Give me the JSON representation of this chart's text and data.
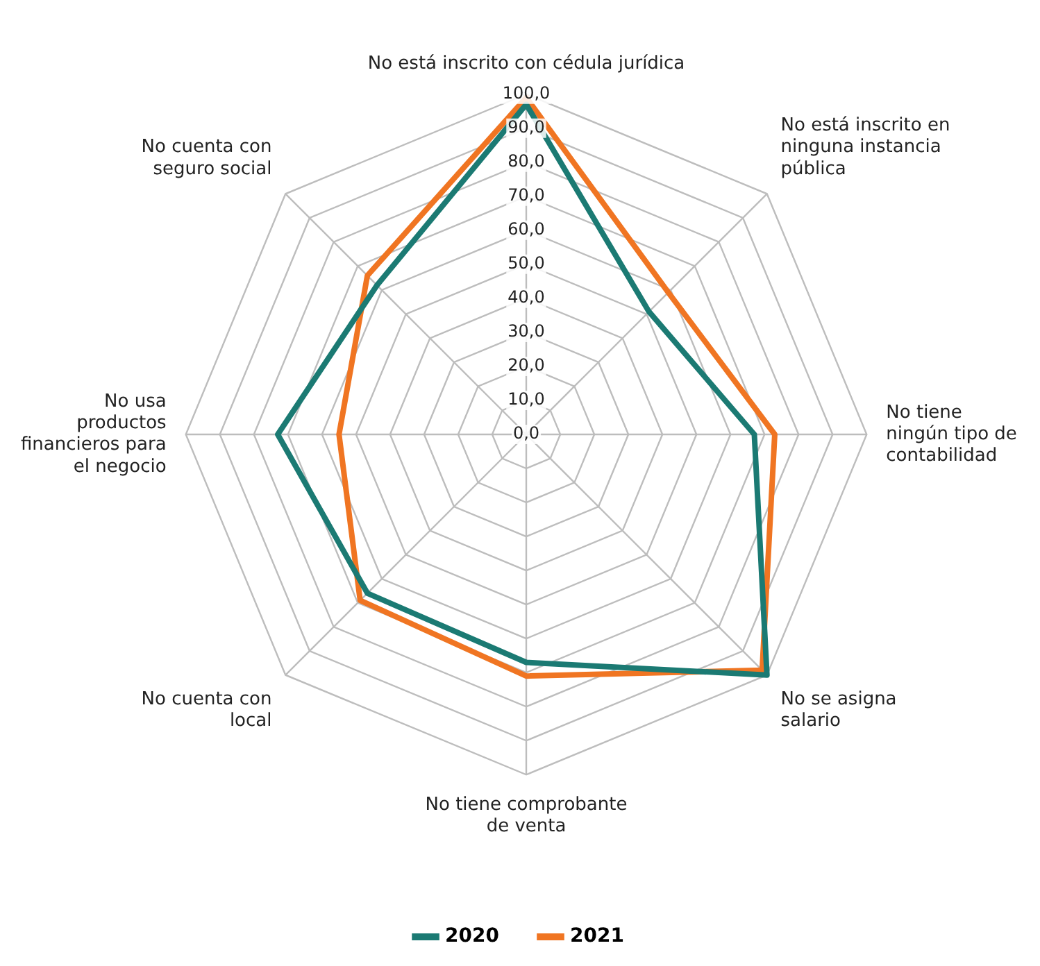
{
  "chart_data": {
    "type": "radar",
    "categories": [
      "No está inscrito con cédula jurídica",
      "No está inscrito en\nninguna instancia\npública",
      "No tiene\nningún tipo de\ncontabilidad",
      "No se asigna\nsalario",
      "No tiene comprobante\nde venta",
      "No cuenta con\nlocal",
      "No usa\nproductos\nfinancieros para\nel negocio",
      "No cuenta con\nseguro social"
    ],
    "series": [
      {
        "name": "2020",
        "color": "#1b7a73",
        "values": [
          97,
          51,
          67,
          100,
          67,
          66,
          73,
          62
        ]
      },
      {
        "name": "2021",
        "color": "#f07522",
        "values": [
          99,
          59,
          73,
          98,
          71,
          69,
          55,
          66
        ]
      }
    ],
    "ylim": [
      0,
      100
    ],
    "yticks": [
      {
        "value": 0,
        "label": "0,0"
      },
      {
        "value": 10,
        "label": "10,0"
      },
      {
        "value": 20,
        "label": "20,0"
      },
      {
        "value": 30,
        "label": "30,0"
      },
      {
        "value": 40,
        "label": "40,0"
      },
      {
        "value": 50,
        "label": "50,0"
      },
      {
        "value": 60,
        "label": "60,0"
      },
      {
        "value": 70,
        "label": "70,0"
      },
      {
        "value": 80,
        "label": "80,0"
      },
      {
        "value": 90,
        "label": "90,0"
      },
      {
        "value": 100,
        "label": "100,0"
      }
    ],
    "grid": true,
    "legend": "bottom",
    "marker": "none",
    "line_style": "solid"
  }
}
